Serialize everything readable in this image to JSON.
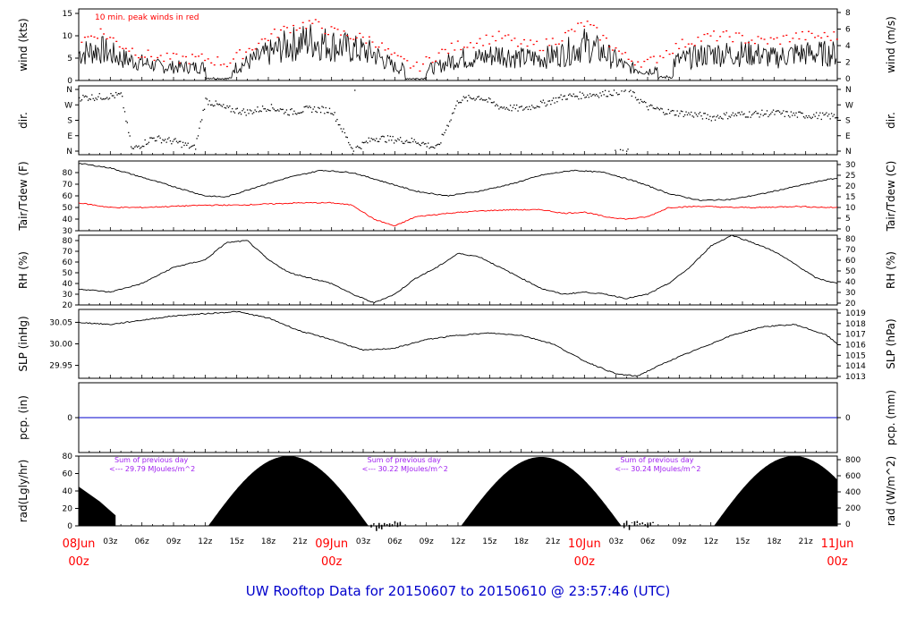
{
  "title": "UW Rooftop Data for 20150607  to  20150610 @ 23:57:46  (UTC)",
  "chart_data": {
    "type": "line",
    "time_axis": {
      "day_labels": [
        {
          "day": "08Jun",
          "hour": "00z",
          "t": 0
        },
        {
          "day": "09Jun",
          "hour": "00z",
          "t": 24
        },
        {
          "day": "10Jun",
          "hour": "00z",
          "t": 48
        },
        {
          "day": "11Jun",
          "hour": "00z",
          "t": 72
        }
      ],
      "hour_ticks": [
        "03z",
        "06z",
        "09z",
        "12z",
        "15z",
        "18z",
        "21z"
      ],
      "range_hours": [
        0,
        72
      ]
    },
    "panels": [
      {
        "id": "wind",
        "ylabel_left": "wind (kts)",
        "ylabel_right": "wind (m/s)",
        "ylim": [
          0,
          16
        ],
        "ticks_left": [
          0,
          5,
          10,
          15
        ],
        "right_ticks": [
          0,
          2,
          4,
          6,
          8
        ],
        "annotation": "10 min. peak winds in red",
        "series_points": [
          [
            0,
            6
          ],
          [
            2,
            7
          ],
          [
            4,
            5
          ],
          [
            6,
            4
          ],
          [
            8,
            3
          ],
          [
            10,
            3
          ],
          [
            12,
            3
          ],
          [
            14,
            2
          ],
          [
            16,
            4
          ],
          [
            18,
            6
          ],
          [
            20,
            8
          ],
          [
            22,
            9
          ],
          [
            24,
            8
          ],
          [
            26,
            7
          ],
          [
            28,
            6
          ],
          [
            30,
            3
          ],
          [
            32,
            2
          ],
          [
            34,
            3
          ],
          [
            36,
            5
          ],
          [
            38,
            5
          ],
          [
            40,
            6
          ],
          [
            42,
            5
          ],
          [
            44,
            5
          ],
          [
            46,
            6
          ],
          [
            48,
            8
          ],
          [
            50,
            6
          ],
          [
            52,
            3
          ],
          [
            54,
            2
          ],
          [
            56,
            4
          ],
          [
            58,
            5
          ],
          [
            60,
            6
          ],
          [
            62,
            6
          ],
          [
            64,
            6
          ],
          [
            66,
            5
          ],
          [
            68,
            6
          ],
          [
            70,
            6
          ],
          [
            72,
            6
          ]
        ],
        "peak_points": [
          [
            0,
            9
          ],
          [
            2,
            11
          ],
          [
            4,
            8
          ],
          [
            6,
            6
          ],
          [
            8,
            5
          ],
          [
            10,
            5
          ],
          [
            12,
            5
          ],
          [
            14,
            4
          ],
          [
            16,
            7
          ],
          [
            18,
            10
          ],
          [
            20,
            12
          ],
          [
            22,
            13
          ],
          [
            24,
            11
          ],
          [
            26,
            10
          ],
          [
            28,
            9
          ],
          [
            30,
            5
          ],
          [
            32,
            3
          ],
          [
            34,
            6
          ],
          [
            36,
            8
          ],
          [
            38,
            9
          ],
          [
            40,
            10
          ],
          [
            42,
            8
          ],
          [
            44,
            8
          ],
          [
            46,
            10
          ],
          [
            48,
            13
          ],
          [
            50,
            9
          ],
          [
            52,
            5
          ],
          [
            54,
            4
          ],
          [
            56,
            7
          ],
          [
            58,
            9
          ],
          [
            60,
            10
          ],
          [
            62,
            10
          ],
          [
            64,
            9
          ],
          [
            66,
            9
          ],
          [
            68,
            10
          ],
          [
            70,
            10
          ],
          [
            72,
            10
          ]
        ]
      },
      {
        "id": "dir",
        "ylabel_left": "dir.",
        "ylabel_right": "dir.",
        "tick_labels": [
          "N",
          "W",
          "S",
          "E",
          "N"
        ],
        "series_points": [
          [
            0,
            315
          ],
          [
            2,
            320
          ],
          [
            4,
            330
          ],
          [
            5,
            10
          ],
          [
            7,
            80
          ],
          [
            9,
            60
          ],
          [
            11,
            20
          ],
          [
            12,
            300
          ],
          [
            14,
            250
          ],
          [
            16,
            230
          ],
          [
            18,
            260
          ],
          [
            20,
            230
          ],
          [
            22,
            250
          ],
          [
            24,
            240
          ],
          [
            26,
            10
          ],
          [
            28,
            80
          ],
          [
            30,
            70
          ],
          [
            32,
            60
          ],
          [
            34,
            20
          ],
          [
            36,
            300
          ],
          [
            38,
            320
          ],
          [
            40,
            260
          ],
          [
            42,
            250
          ],
          [
            44,
            280
          ],
          [
            46,
            320
          ],
          [
            48,
            330
          ],
          [
            50,
            340
          ],
          [
            52,
            360
          ],
          [
            54,
            260
          ],
          [
            56,
            230
          ],
          [
            58,
            220
          ],
          [
            60,
            200
          ],
          [
            62,
            215
          ],
          [
            64,
            220
          ],
          [
            66,
            225
          ],
          [
            68,
            215
          ],
          [
            70,
            210
          ],
          [
            72,
            205
          ]
        ]
      },
      {
        "id": "temp",
        "ylabel_left": "Tair/Tdew (F)",
        "ylabel_right": "Tair/Tdew (C)",
        "ylim": [
          30,
          90
        ],
        "ticks_left": [
          30,
          40,
          50,
          60,
          70,
          80
        ],
        "right_ticks": [
          0,
          5,
          10,
          15,
          20,
          25,
          30
        ],
        "series": [
          {
            "color": "#000000",
            "points": [
              [
                0,
                88
              ],
              [
                3,
                84
              ],
              [
                6,
                76
              ],
              [
                9,
                68
              ],
              [
                12,
                60
              ],
              [
                14,
                59
              ],
              [
                17,
                68
              ],
              [
                20,
                76
              ],
              [
                23,
                82
              ],
              [
                26,
                80
              ],
              [
                29,
                72
              ],
              [
                32,
                64
              ],
              [
                35,
                60
              ],
              [
                38,
                64
              ],
              [
                41,
                70
              ],
              [
                44,
                78
              ],
              [
                47,
                82
              ],
              [
                50,
                80
              ],
              [
                53,
                72
              ],
              [
                56,
                62
              ],
              [
                59,
                56
              ],
              [
                62,
                57
              ],
              [
                65,
                62
              ],
              [
                68,
                68
              ],
              [
                71,
                74
              ],
              [
                72,
                75
              ]
            ]
          },
          {
            "color": "#ff0000",
            "points": [
              [
                0,
                54
              ],
              [
                3,
                50
              ],
              [
                6,
                50
              ],
              [
                9,
                51
              ],
              [
                12,
                52
              ],
              [
                15,
                52
              ],
              [
                18,
                53
              ],
              [
                21,
                54
              ],
              [
                24,
                54
              ],
              [
                26,
                52
              ],
              [
                28,
                40
              ],
              [
                30,
                34
              ],
              [
                32,
                42
              ],
              [
                35,
                45
              ],
              [
                38,
                47
              ],
              [
                41,
                48
              ],
              [
                44,
                48
              ],
              [
                46,
                45
              ],
              [
                48,
                46
              ],
              [
                50,
                42
              ],
              [
                52,
                40
              ],
              [
                54,
                42
              ],
              [
                56,
                50
              ],
              [
                59,
                51
              ],
              [
                62,
                50
              ],
              [
                65,
                50
              ],
              [
                68,
                51
              ],
              [
                71,
                50
              ],
              [
                72,
                50
              ]
            ]
          }
        ]
      },
      {
        "id": "rh",
        "ylabel_left": "RH (%)",
        "ylabel_right": "RH (%)",
        "ylim": [
          20,
          85
        ],
        "ticks_left": [
          20,
          30,
          40,
          50,
          60,
          70,
          80
        ],
        "right_ticks": [
          20,
          30,
          40,
          50,
          60,
          70,
          80
        ],
        "series_points": [
          [
            0,
            35
          ],
          [
            3,
            32
          ],
          [
            6,
            40
          ],
          [
            9,
            55
          ],
          [
            12,
            62
          ],
          [
            14,
            78
          ],
          [
            16,
            80
          ],
          [
            18,
            62
          ],
          [
            20,
            50
          ],
          [
            22,
            45
          ],
          [
            24,
            40
          ],
          [
            26,
            30
          ],
          [
            28,
            22
          ],
          [
            30,
            30
          ],
          [
            32,
            45
          ],
          [
            34,
            55
          ],
          [
            36,
            68
          ],
          [
            38,
            65
          ],
          [
            40,
            55
          ],
          [
            42,
            45
          ],
          [
            44,
            35
          ],
          [
            46,
            30
          ],
          [
            48,
            32
          ],
          [
            50,
            30
          ],
          [
            52,
            26
          ],
          [
            54,
            30
          ],
          [
            56,
            40
          ],
          [
            58,
            55
          ],
          [
            60,
            75
          ],
          [
            62,
            85
          ],
          [
            64,
            78
          ],
          [
            66,
            70
          ],
          [
            68,
            58
          ],
          [
            70,
            45
          ],
          [
            72,
            40
          ]
        ]
      },
      {
        "id": "slp",
        "ylabel_left": "SLP (inHg)",
        "ylabel_right": "SLP (hPa)",
        "ylim": [
          29.92,
          30.08
        ],
        "ticks_left": [
          29.95,
          30.0,
          30.05
        ],
        "tick_labels_left": [
          "29.95",
          "30.00",
          "30.05"
        ],
        "right_ticks": [
          1013,
          1014,
          1015,
          1016,
          1017,
          1018,
          1019
        ],
        "series_points": [
          [
            0,
            30.05
          ],
          [
            3,
            30.045
          ],
          [
            6,
            30.055
          ],
          [
            9,
            30.065
          ],
          [
            12,
            30.07
          ],
          [
            15,
            30.075
          ],
          [
            18,
            30.06
          ],
          [
            21,
            30.03
          ],
          [
            24,
            30.01
          ],
          [
            27,
            29.985
          ],
          [
            30,
            29.99
          ],
          [
            33,
            30.01
          ],
          [
            36,
            30.02
          ],
          [
            39,
            30.025
          ],
          [
            42,
            30.02
          ],
          [
            45,
            30.0
          ],
          [
            48,
            29.96
          ],
          [
            51,
            29.93
          ],
          [
            53,
            29.925
          ],
          [
            56,
            29.96
          ],
          [
            59,
            29.99
          ],
          [
            62,
            30.02
          ],
          [
            65,
            30.04
          ],
          [
            68,
            30.045
          ],
          [
            71,
            30.02
          ],
          [
            72,
            30.0
          ]
        ]
      },
      {
        "id": "pcp",
        "ylabel_left": "pcp. (in)",
        "ylabel_right": "pcp. (mm)",
        "ylim": [
          -0.1,
          0.1
        ],
        "ticks_left": [
          0
        ],
        "right_ticks": [
          0
        ],
        "series_points": [
          [
            0,
            0
          ],
          [
            72,
            0
          ]
        ]
      },
      {
        "id": "rad",
        "ylabel_left": "rad(Lgly/hr)",
        "ylabel_right": "rad (W/m^2)",
        "ylim": [
          0,
          80
        ],
        "ticks_left": [
          0,
          20,
          40,
          60,
          80
        ],
        "right_ticks": [
          0,
          200,
          400,
          600,
          800
        ],
        "daily_sums": [
          {
            "label": "Sum of previous day",
            "value": "<--- 29.79 MJoules/m^2",
            "t": 12
          },
          {
            "label": "Sum of previous day",
            "value": "<--- 30.22 MJoules/m^2",
            "t": 36
          },
          {
            "label": "Sum of previous day",
            "value": "<--- 30.24 MJoules/m^2",
            "t": 60
          }
        ],
        "day_cycles": [
          {
            "rise": 12.3,
            "set": 27.5,
            "peak": 80
          },
          {
            "rise": 36.3,
            "set": 51.5,
            "peak": 79
          },
          {
            "rise": 60.3,
            "set": 72,
            "peak": 80
          }
        ],
        "initial_tail": [
          [
            0,
            45
          ],
          [
            2,
            28
          ],
          [
            3.5,
            12
          ]
        ]
      }
    ]
  }
}
